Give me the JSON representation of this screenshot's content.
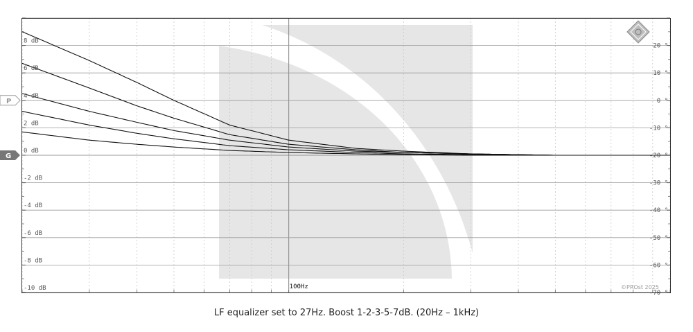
{
  "caption": "LF equalizer set to 27Hz. Boost 1-2-3-5-7dB. (20Hz – 1kHz)",
  "watermark": "©PROst 2025",
  "markers": {
    "p": "P",
    "g": "G"
  },
  "colors": {
    "grid_major": "#9a9a9a",
    "grid_minor": "#c8c8c8",
    "curve": "#111111",
    "background_art": "#e6e6e6",
    "marker_fill": "#777777"
  },
  "chart_data": {
    "type": "line",
    "title": "LF equalizer set to 27Hz. Boost 1-2-3-5-7dB. (20Hz – 1kHz)",
    "x_scale": "log",
    "xlim": [
      20,
      1000
    ],
    "ylim": [
      -10,
      10
    ],
    "y2lim": [
      -70,
      30
    ],
    "x_tick_labels": [
      {
        "value": 100,
        "label": "100Hz"
      }
    ],
    "y_tick_labels": [
      {
        "value": 8,
        "label": "8 dB"
      },
      {
        "value": 6,
        "label": "6 dB"
      },
      {
        "value": 4,
        "label": "4 dB"
      },
      {
        "value": 2,
        "label": "2 dB"
      },
      {
        "value": 0,
        "label": "0 dB"
      },
      {
        "value": -2,
        "label": "-2 dB"
      },
      {
        "value": -4,
        "label": "-4 dB"
      },
      {
        "value": -6,
        "label": "-6 dB"
      },
      {
        "value": -8,
        "label": "-8 dB"
      },
      {
        "value": -10,
        "label": "-10 dB"
      }
    ],
    "y2_tick_labels": [
      {
        "value": 20,
        "label": "20 °"
      },
      {
        "value": 10,
        "label": "10 °"
      },
      {
        "value": 0,
        "label": "0 °"
      },
      {
        "value": -10,
        "label": "-10 °"
      },
      {
        "value": -20,
        "label": "-20 °"
      },
      {
        "value": -30,
        "label": "-30 °"
      },
      {
        "value": -40,
        "label": "-40 °"
      },
      {
        "value": -50,
        "label": "-50 °"
      },
      {
        "value": -60,
        "label": "-60 °"
      },
      {
        "value": -70,
        "label": "-70 °"
      }
    ],
    "marker_levels": {
      "p": 4,
      "g": 0
    },
    "x": [
      20,
      30,
      40,
      50,
      70,
      100,
      150,
      200,
      300,
      500,
      700,
      1000
    ],
    "series": [
      {
        "values": [
          9.0,
          6.9,
          5.3,
          4.0,
          2.2,
          1.1,
          0.5,
          0.3,
          0.1,
          0.0,
          0.0,
          0.0
        ]
      },
      {
        "values": [
          6.7,
          4.9,
          3.6,
          2.7,
          1.5,
          0.8,
          0.4,
          0.2,
          0.1,
          0.0,
          0.0,
          0.0
        ]
      },
      {
        "values": [
          4.5,
          3.2,
          2.4,
          1.8,
          1.1,
          0.6,
          0.3,
          0.2,
          0.1,
          0.0,
          0.0,
          0.0
        ]
      },
      {
        "values": [
          3.2,
          2.2,
          1.6,
          1.2,
          0.7,
          0.4,
          0.2,
          0.1,
          0.05,
          0.0,
          0.0,
          0.0
        ]
      },
      {
        "values": [
          1.7,
          1.1,
          0.8,
          0.6,
          0.35,
          0.2,
          0.1,
          0.05,
          0.0,
          0.0,
          0.0,
          0.0
        ]
      }
    ]
  }
}
